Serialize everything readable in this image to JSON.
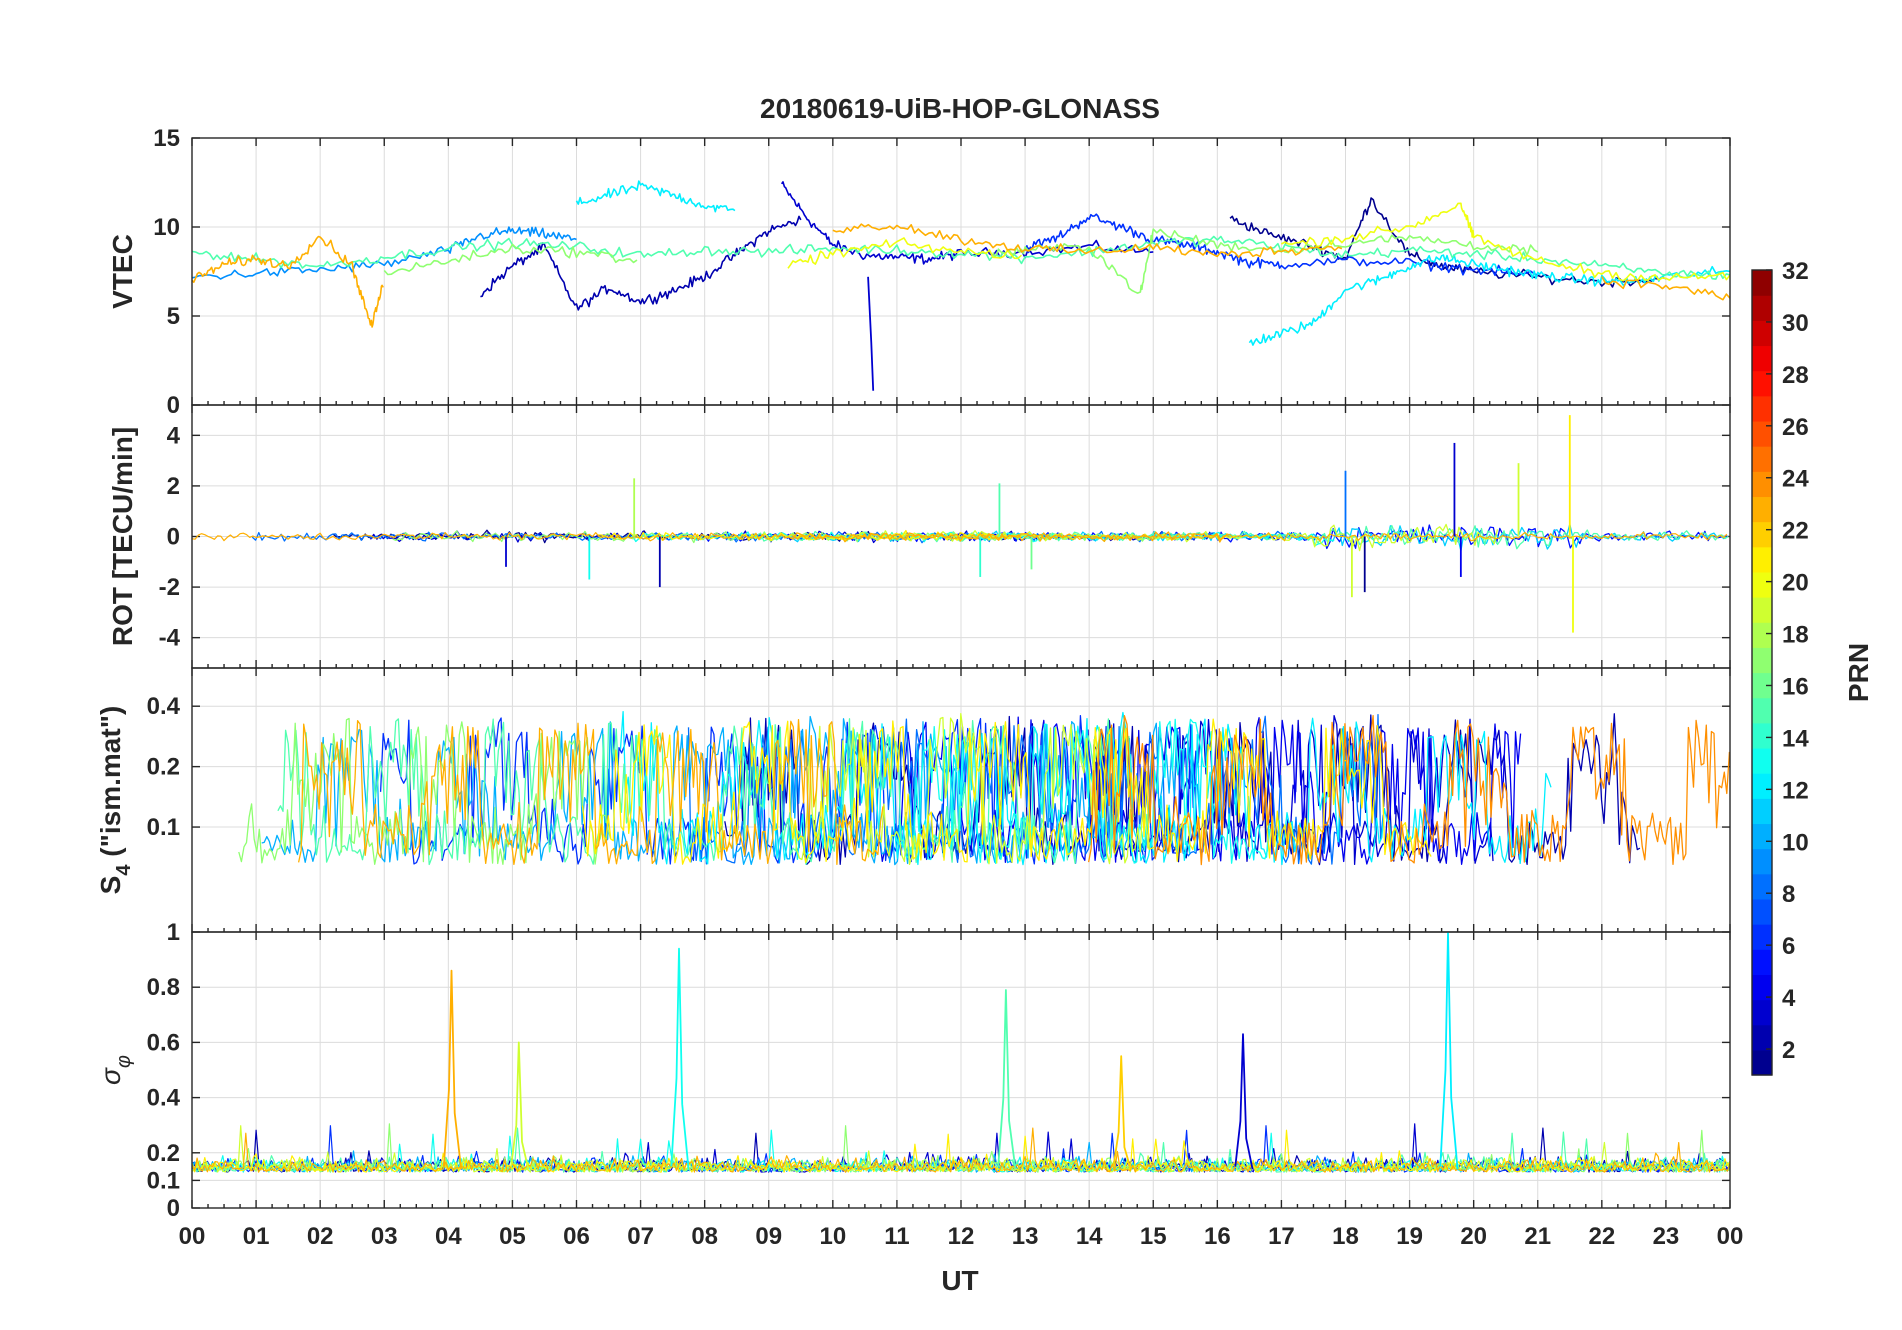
{
  "chart_data": {
    "type": "line",
    "title": "20180619-UiB-HOP-GLONASS",
    "xlabel": "UT",
    "x_range": [
      0,
      24
    ],
    "x_tick_labels": [
      "00",
      "01",
      "02",
      "03",
      "04",
      "05",
      "06",
      "07",
      "08",
      "09",
      "10",
      "11",
      "12",
      "13",
      "14",
      "15",
      "16",
      "17",
      "18",
      "19",
      "20",
      "21",
      "22",
      "23",
      "00"
    ],
    "colorbar": {
      "label": "PRN",
      "range": [
        1,
        32
      ],
      "tick_labels": [
        "2",
        "4",
        "6",
        "8",
        "10",
        "12",
        "14",
        "16",
        "18",
        "20",
        "22",
        "24",
        "26",
        "28",
        "30",
        "32"
      ],
      "colormap": "jet"
    },
    "panels": [
      {
        "name": "vtec",
        "ylabel": "VTEC",
        "ylim": [
          0,
          15
        ],
        "ytick_labels": [
          "0",
          "5",
          "10",
          "15"
        ],
        "series": [
          {
            "prn": 3,
            "x": [
              9.2,
              9.6,
              10.0,
              10.5,
              11.0,
              11.5,
              12.0,
              13.0,
              14.0,
              15.0
            ],
            "y": [
              12.4,
              10.5,
              9.0,
              8.4,
              8.3,
              8.2,
              8.5,
              8.6,
              8.9,
              8.6
            ]
          },
          {
            "prn": 2,
            "x": [
              4.5,
              5.0,
              5.5,
              6.0,
              6.5,
              7.0,
              7.5,
              8.0,
              8.5,
              9.0,
              9.5
            ],
            "y": [
              6.2,
              7.8,
              8.9,
              5.4,
              6.6,
              5.8,
              6.4,
              7.2,
              8.5,
              9.8,
              10.4
            ]
          },
          {
            "prn": 1,
            "x": [
              16.2,
              16.8,
              17.5,
              18.0,
              18.4,
              19.0,
              19.5,
              20.0,
              21.0,
              22.0,
              23.0
            ],
            "y": [
              10.5,
              9.6,
              8.9,
              8.2,
              11.6,
              8.4,
              7.8,
              7.5,
              7.2,
              6.9,
              7.1
            ]
          },
          {
            "prn": 6,
            "x": [
              13.0,
              13.5,
              14.0,
              14.5,
              15.0,
              15.5,
              16.0,
              16.5,
              17.0,
              18.0,
              19.0,
              20.0,
              21.0
            ],
            "y": [
              8.8,
              9.4,
              10.6,
              10.0,
              9.3,
              9.0,
              8.6,
              8.0,
              7.9,
              8.1,
              8.0,
              7.6,
              7.3
            ]
          },
          {
            "prn": 9,
            "x": [
              0.0,
              1.0,
              2.0,
              3.0,
              4.0,
              4.5,
              5.0,
              5.5,
              6.0
            ],
            "y": [
              7.2,
              7.4,
              7.6,
              7.9,
              8.7,
              9.5,
              9.8,
              9.6,
              9.3
            ]
          },
          {
            "prn": 12,
            "x": [
              6.0,
              6.5,
              7.0,
              7.5,
              8.0,
              8.5,
              16.5,
              17.0,
              17.5,
              18.0,
              18.5,
              19.0,
              19.5,
              20.0,
              20.5,
              21.0,
              21.5,
              22.0,
              22.5,
              23.0,
              24.0
            ],
            "y": [
              11.3,
              11.8,
              12.3,
              11.8,
              11.2,
              10.9,
              3.5,
              4.0,
              4.6,
              6.5,
              7.0,
              7.8,
              8.3,
              7.9,
              7.6,
              7.3,
              7.1,
              7.0,
              6.9,
              7.2,
              7.5
            ]
          },
          {
            "prn": 15,
            "x": [
              0.0,
              1.0,
              2.0,
              3.0,
              4.0,
              5.0,
              6.0,
              7.0,
              8.0,
              9.0,
              10.0,
              11.0,
              12.0,
              13.0,
              14.0,
              15.0,
              16.0,
              17.0,
              18.0,
              19.0,
              20.0,
              21.0,
              22.0,
              23.0,
              24.0
            ],
            "y": [
              8.6,
              8.2,
              7.8,
              8.3,
              8.8,
              9.1,
              8.9,
              8.4,
              8.7,
              8.6,
              8.8,
              8.7,
              8.5,
              8.3,
              8.6,
              9.1,
              9.3,
              8.9,
              8.4,
              8.7,
              8.5,
              8.2,
              7.8,
              7.4,
              7.3
            ]
          },
          {
            "prn": 17,
            "x": [
              3.0,
              4.0,
              5.0,
              6.0,
              7.0,
              12.5,
              13.0,
              14.0,
              14.8,
              15.0,
              16.0,
              17.0,
              18.0,
              19.0,
              20.0,
              21.0
            ],
            "y": [
              7.4,
              8.1,
              8.8,
              8.6,
              8.1,
              8.5,
              8.7,
              8.9,
              6.2,
              9.8,
              9.0,
              8.7,
              9.1,
              9.4,
              9.0,
              8.6
            ]
          },
          {
            "prn": 20,
            "x": [
              9.3,
              10.0,
              11.0,
              12.0,
              13.0,
              17.0,
              18.0,
              19.0,
              19.8,
              20.0,
              21.0,
              22.0,
              23.0,
              24.0
            ],
            "y": [
              7.8,
              8.5,
              9.1,
              8.6,
              8.4,
              9.0,
              9.4,
              10.0,
              11.3,
              9.4,
              8.1,
              7.4,
              7.1,
              7.3
            ]
          },
          {
            "prn": 23,
            "x": [
              0.0,
              0.5,
              1.0,
              1.5,
              2.0,
              2.5,
              2.8,
              3.0,
              10.0,
              11.0,
              12.0,
              13.0,
              14.0,
              15.0,
              16.0,
              17.0,
              18.0,
              22.0,
              23.0,
              24.0
            ],
            "y": [
              7.0,
              7.9,
              8.2,
              7.8,
              9.5,
              7.8,
              4.4,
              7.0,
              9.9,
              10.1,
              9.3,
              8.8,
              8.6,
              8.9,
              8.4,
              8.7,
              8.9,
              7.0,
              6.7,
              6.0
            ]
          }
        ]
      },
      {
        "name": "rot",
        "ylabel": "ROT [TECU/min]",
        "ylim": [
          -5.2,
          5.2
        ],
        "ytick_labels": [
          "-4",
          "-2",
          "0",
          "2",
          "4"
        ],
        "spikes": [
          {
            "prn": 3,
            "x": 4.9,
            "y": -1.2
          },
          {
            "prn": 2,
            "x": 7.3,
            "y": -2.0
          },
          {
            "prn": 13,
            "x": 6.2,
            "y": -1.7
          },
          {
            "prn": 18,
            "x": 6.9,
            "y": 2.3
          },
          {
            "prn": 15,
            "x": 12.6,
            "y": 2.1
          },
          {
            "prn": 14,
            "x": 12.3,
            "y": -1.6
          },
          {
            "prn": 16,
            "x": 13.1,
            "y": -1.3
          },
          {
            "prn": 8,
            "x": 18.0,
            "y": 2.6
          },
          {
            "prn": 19,
            "x": 18.1,
            "y": -2.4
          },
          {
            "prn": 1,
            "x": 18.3,
            "y": -2.2
          },
          {
            "prn": 3,
            "x": 19.7,
            "y": 3.7
          },
          {
            "prn": 4,
            "x": 19.8,
            "y": -1.6
          },
          {
            "prn": 19,
            "x": 20.7,
            "y": 2.9
          },
          {
            "prn": 21,
            "x": 21.5,
            "y": 4.8
          },
          {
            "prn": 20,
            "x": 21.55,
            "y": -3.8
          }
        ]
      },
      {
        "name": "s4",
        "ylabel": "S4 (\"ism.mat\")",
        "ylabel_main": "S",
        "ylabel_sub": "4",
        "ylabel_tail": " (\"ism.mat\")",
        "ylim": [
          0.03,
          0.62
        ],
        "ytick_labels": [
          "0.1",
          "0.2",
          "0.4"
        ],
        "y_scale": "log"
      },
      {
        "name": "sigma-phi",
        "ylabel": "σφ",
        "ylabel_main": "σ",
        "ylabel_sub": "φ",
        "ylim": [
          0,
          1
        ],
        "ytick_labels": [
          "0",
          "0.1",
          "0.2",
          "0.4",
          "0.6",
          "0.8",
          "1"
        ],
        "peaks": [
          {
            "prn": 23,
            "x": 4.05,
            "y": 0.86
          },
          {
            "prn": 13,
            "x": 7.6,
            "y": 0.94
          },
          {
            "prn": 15,
            "x": 12.7,
            "y": 0.79
          },
          {
            "prn": 22,
            "x": 14.5,
            "y": 0.55
          },
          {
            "prn": 3,
            "x": 16.4,
            "y": 0.63
          },
          {
            "prn": 12,
            "x": 19.6,
            "y": 1.0
          },
          {
            "prn": 19,
            "x": 5.1,
            "y": 0.6
          }
        ]
      }
    ]
  }
}
